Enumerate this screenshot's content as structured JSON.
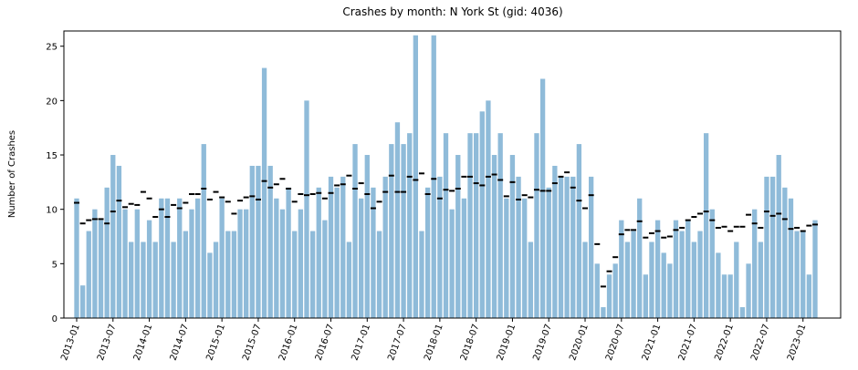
{
  "chart_data": {
    "type": "bar",
    "title": "Crashes by month: N York St (gid: 4036)",
    "ylabel": "Number of Crashes",
    "categories": [
      "2013-01",
      null,
      null,
      null,
      null,
      null,
      "2013-07",
      null,
      null,
      null,
      null,
      null,
      "2014-01",
      null,
      null,
      null,
      null,
      null,
      "2014-07",
      null,
      null,
      null,
      null,
      null,
      "2015-01",
      null,
      null,
      null,
      null,
      null,
      "2015-07",
      null,
      null,
      null,
      null,
      null,
      "2016-01",
      null,
      null,
      null,
      null,
      null,
      "2016-07",
      null,
      null,
      null,
      null,
      null,
      "2017-01",
      null,
      null,
      null,
      null,
      null,
      "2017-07",
      null,
      null,
      null,
      null,
      null,
      "2018-01",
      null,
      null,
      null,
      null,
      null,
      "2018-07",
      null,
      null,
      null,
      null,
      null,
      "2019-01",
      null,
      null,
      null,
      null,
      null,
      "2019-07",
      null,
      null,
      null,
      null,
      null,
      "2020-01",
      null,
      null,
      null,
      null,
      null,
      "2020-07",
      null,
      null,
      null,
      null,
      null,
      "2021-01",
      null,
      null,
      null,
      null,
      null,
      "2021-07",
      null,
      null,
      null,
      null,
      null,
      "2022-01",
      null,
      null,
      null,
      null,
      null,
      "2022-07",
      null,
      null,
      null,
      null,
      null,
      "2023-01",
      null,
      null
    ],
    "series": [
      {
        "color": "#8fbbd9",
        "values": [
          11,
          3,
          8,
          10,
          9,
          12,
          15,
          14,
          10,
          7,
          10,
          7,
          9,
          7,
          11,
          11,
          7,
          11,
          8,
          10,
          11,
          16,
          6,
          7,
          11,
          8,
          8,
          10,
          10,
          14,
          14,
          23,
          14,
          11,
          10,
          12,
          8,
          10,
          20,
          8,
          12,
          9,
          13,
          12,
          13,
          7,
          16,
          11,
          15,
          12,
          8,
          13,
          16,
          18,
          16,
          17,
          26,
          8,
          12,
          26,
          13,
          17,
          10,
          15,
          11,
          17,
          17,
          19,
          20,
          15,
          17,
          11,
          15,
          13,
          11,
          7,
          17,
          22,
          12,
          14,
          13,
          13,
          13,
          16,
          7,
          13,
          5,
          1,
          4,
          5,
          9,
          7,
          8,
          11,
          4,
          7,
          9,
          6,
          5,
          9,
          8,
          9,
          7,
          8,
          17,
          10,
          6,
          4,
          4,
          7,
          1,
          5,
          10,
          7,
          13,
          13,
          15,
          12,
          11,
          8,
          8,
          4,
          9
        ]
      },
      {
        "color": "#000000",
        "marker": "dash",
        "values": [
          10.6,
          8.7,
          9.0,
          9.1,
          9.1,
          8.7,
          9.8,
          10.8,
          10.2,
          10.5,
          10.4,
          11.6,
          11.0,
          9.3,
          10.0,
          9.3,
          10.4,
          10.1,
          10.6,
          11.4,
          11.4,
          11.9,
          10.9,
          11.6,
          11.1,
          10.7,
          9.6,
          10.8,
          11.1,
          11.2,
          10.9,
          12.6,
          12.0,
          12.3,
          12.8,
          11.9,
          10.7,
          11.4,
          11.3,
          11.4,
          11.5,
          11.0,
          11.5,
          12.2,
          12.3,
          13.1,
          11.9,
          12.4,
          11.4,
          10.1,
          10.7,
          11.6,
          13.1,
          11.6,
          11.6,
          13.0,
          12.7,
          13.3,
          11.4,
          12.8,
          11.0,
          11.8,
          11.7,
          11.9,
          13.0,
          13.0,
          12.4,
          12.2,
          13.0,
          13.2,
          12.7,
          11.2,
          12.5,
          10.9,
          11.3,
          11.1,
          11.8,
          11.7,
          11.7,
          12.4,
          13.0,
          13.4,
          12.0,
          10.8,
          10.1,
          11.3,
          6.8,
          2.9,
          4.3,
          5.6,
          7.7,
          8.1,
          8.1,
          8.9,
          7.4,
          7.8,
          8.0,
          7.4,
          7.5,
          8.1,
          8.3,
          9.0,
          9.3,
          9.6,
          9.8,
          9.0,
          8.3,
          8.4,
          8.0,
          8.4,
          8.4,
          9.5,
          8.7,
          8.3,
          9.8,
          9.4,
          9.6,
          9.1,
          8.2,
          8.3,
          8.0,
          8.5,
          8.6
        ]
      }
    ],
    "ylim": [
      0,
      26.4
    ],
    "yticks": [
      0,
      5,
      10,
      15,
      20,
      25
    ],
    "grid": false
  }
}
